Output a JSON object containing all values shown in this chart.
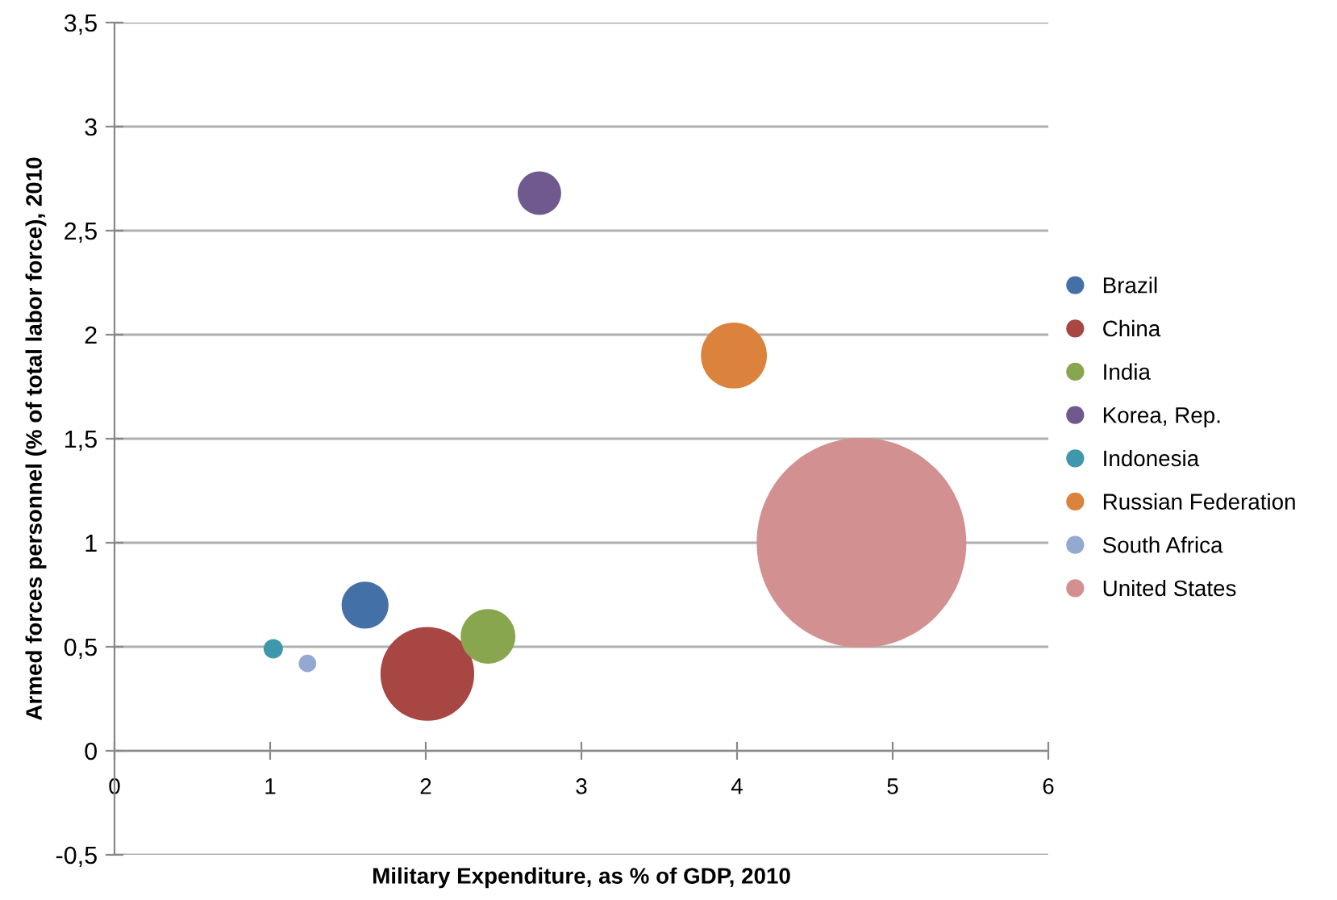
{
  "chart_data": {
    "type": "bubble",
    "xlabel": "Military Expenditure, as % of GDP, 2010",
    "ylabel": "Armed forces personnel (% of total labor force), 2010",
    "xlim": [
      0,
      6
    ],
    "xticks": [
      0,
      1,
      2,
      3,
      4,
      5,
      6
    ],
    "ylim": [
      -0.5,
      3.5
    ],
    "yticks": [
      {
        "value": -0.5,
        "label": "-0,5"
      },
      0,
      {
        "value": 0.5,
        "label": "0,5"
      },
      1,
      {
        "value": 1.5,
        "label": "1,5"
      },
      2,
      {
        "value": 2.5,
        "label": "2,5"
      },
      3,
      {
        "value": 3.5,
        "label": "3,5"
      }
    ],
    "grid": "y",
    "legend": "right",
    "series": [
      {
        "name": "Brazil",
        "color": "#4470a8",
        "x": [
          1.61
        ],
        "values": [
          0.7
        ],
        "sizes": [
          0.05
        ]
      },
      {
        "name": "China",
        "color": "#a84644",
        "x": [
          2.01
        ],
        "values": [
          0.37
        ],
        "sizes": [
          0.2
        ]
      },
      {
        "name": "India",
        "color": "#87a64d",
        "x": [
          2.4
        ],
        "values": [
          0.55
        ],
        "sizes": [
          0.068
        ]
      },
      {
        "name": "Korea, Rep.",
        "color": "#70598f",
        "x": [
          2.73
        ],
        "values": [
          2.68
        ],
        "sizes": [
          0.043
        ]
      },
      {
        "name": "Indonesia",
        "color": "#3f97ad",
        "x": [
          1.02
        ],
        "values": [
          0.49
        ],
        "sizes": [
          0.0085
        ]
      },
      {
        "name": "Russian Federation",
        "color": "#db823c",
        "x": [
          3.98
        ],
        "values": [
          1.9
        ],
        "sizes": [
          0.099
        ]
      },
      {
        "name": "South Africa",
        "color": "#93a9d0",
        "x": [
          1.24
        ],
        "values": [
          0.42
        ],
        "sizes": [
          0.007
        ]
      },
      {
        "name": "United States",
        "color": "#d29190",
        "x": [
          4.8
        ],
        "values": [
          1.0
        ],
        "sizes": [
          1
        ]
      }
    ]
  }
}
